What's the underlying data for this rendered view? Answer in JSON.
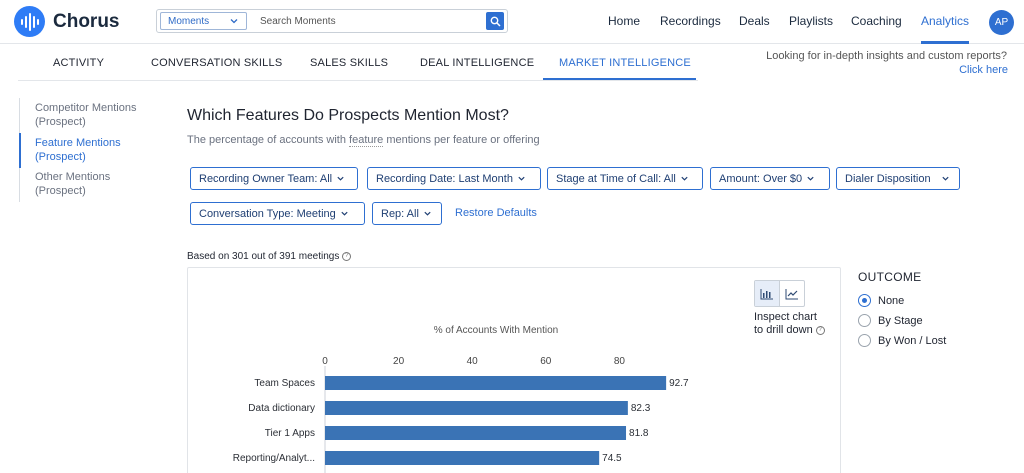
{
  "app": {
    "name": "Chorus",
    "avatar_initials": "AP"
  },
  "search": {
    "scope_label": "Moments",
    "placeholder": "Search Moments"
  },
  "nav": {
    "items": [
      {
        "label": "Home",
        "active": false
      },
      {
        "label": "Recordings",
        "active": false
      },
      {
        "label": "Deals",
        "active": false
      },
      {
        "label": "Playlists",
        "active": false
      },
      {
        "label": "Coaching",
        "active": false
      },
      {
        "label": "Analytics",
        "active": true
      }
    ]
  },
  "subtabs": [
    {
      "label": "ACTIVITY",
      "active": false
    },
    {
      "label": "CONVERSATION SKILLS",
      "active": false
    },
    {
      "label": "SALES SKILLS",
      "active": false
    },
    {
      "label": "DEAL INTELLIGENCE",
      "active": false
    },
    {
      "label": "MARKET INTELLIGENCE",
      "active": true
    }
  ],
  "insights": {
    "text": "Looking for in-depth insights and custom reports?",
    "link": "Click here"
  },
  "leftnav": [
    {
      "line1": "Competitor Mentions",
      "line2": "(Prospect)",
      "active": false
    },
    {
      "line1": "Feature Mentions",
      "line2": "(Prospect)",
      "active": true
    },
    {
      "line1": "Other Mentions",
      "line2": "(Prospect)",
      "active": false
    }
  ],
  "main": {
    "title": "Which Features Do Prospects Mention Most?",
    "subtitle_pre": "The percentage of accounts with ",
    "subtitle_term": "feature",
    "subtitle_post": " mentions per feature or offering"
  },
  "filters": {
    "row1": [
      "Recording Owner Team:  All",
      "Recording Date:  Last Month",
      "Stage at Time of Call:  All",
      "Amount:  Over $0",
      "Dialer Disposition"
    ],
    "row2": [
      "Conversation Type:  Meeting",
      "Rep:  All"
    ],
    "restore_label": "Restore Defaults"
  },
  "based_on": "Based on 301 out of 391 meetings",
  "inspect": {
    "line1": "Inspect chart",
    "line2": "to drill down"
  },
  "outcome": {
    "title": "OUTCOME",
    "options": [
      {
        "label": "None",
        "selected": true
      },
      {
        "label": "By Stage",
        "selected": false
      },
      {
        "label": "By Won / Lost",
        "selected": false
      }
    ]
  },
  "colors": {
    "accent": "#2e6fd1",
    "bar": "#3a73b5"
  },
  "chart_data": {
    "type": "bar",
    "orientation": "horizontal",
    "title": "% of Accounts With Mention",
    "xlim": [
      0,
      95
    ],
    "ticks": [
      0,
      20,
      40,
      60,
      80
    ],
    "categories": [
      "Team Spaces",
      "Data dictionary",
      "Tier 1 Apps",
      "Reporting/Analyt..."
    ],
    "values": [
      92.7,
      82.3,
      81.8,
      74.5
    ],
    "value_labels": [
      "92.7",
      "82.3",
      "81.8",
      "74.5"
    ]
  }
}
